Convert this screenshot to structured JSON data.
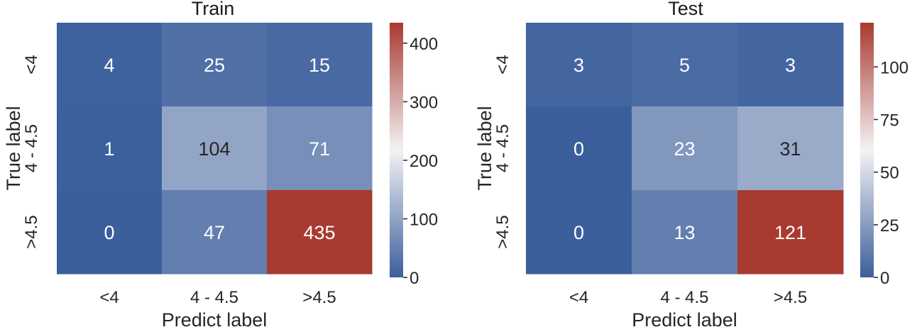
{
  "chart_data": [
    {
      "type": "heatmap",
      "title": "Train",
      "xlabel": "Predict label",
      "ylabel": "True label",
      "x_categories": [
        "<4",
        "4 - 4.5",
        ">4.5"
      ],
      "y_categories": [
        "<4",
        "4 - 4.5",
        ">4.5"
      ],
      "values": [
        [
          4,
          25,
          15
        ],
        [
          1,
          104,
          71
        ],
        [
          0,
          47,
          435
        ]
      ],
      "colorbar": {
        "min": 0,
        "max": 435,
        "ticks": [
          {
            "value": 0,
            "label": "0"
          },
          {
            "value": 100,
            "label": "100"
          },
          {
            "value": 200,
            "label": "200"
          },
          {
            "value": 300,
            "label": "300"
          },
          {
            "value": 400,
            "label": "400"
          }
        ]
      },
      "colormap": {
        "low": "#3B5F9C",
        "mid": "#F4F2F4",
        "high": "#A83A30"
      }
    },
    {
      "type": "heatmap",
      "title": "Test",
      "xlabel": "Predict label",
      "ylabel": "True label",
      "x_categories": [
        "<4",
        "4 - 4.5",
        ">4.5"
      ],
      "y_categories": [
        "<4",
        "4 - 4.5",
        ">4.5"
      ],
      "values": [
        [
          3,
          5,
          3
        ],
        [
          0,
          23,
          31
        ],
        [
          0,
          13,
          121
        ]
      ],
      "colorbar": {
        "min": 0,
        "max": 121,
        "ticks": [
          {
            "value": 0,
            "label": "0"
          },
          {
            "value": 25,
            "label": "25"
          },
          {
            "value": 50,
            "label": "50"
          },
          {
            "value": 75,
            "label": "75"
          },
          {
            "value": 100,
            "label": "100"
          }
        ]
      },
      "colormap": {
        "low": "#3B5F9C",
        "mid": "#F4F2F4",
        "high": "#A83A30"
      }
    }
  ]
}
